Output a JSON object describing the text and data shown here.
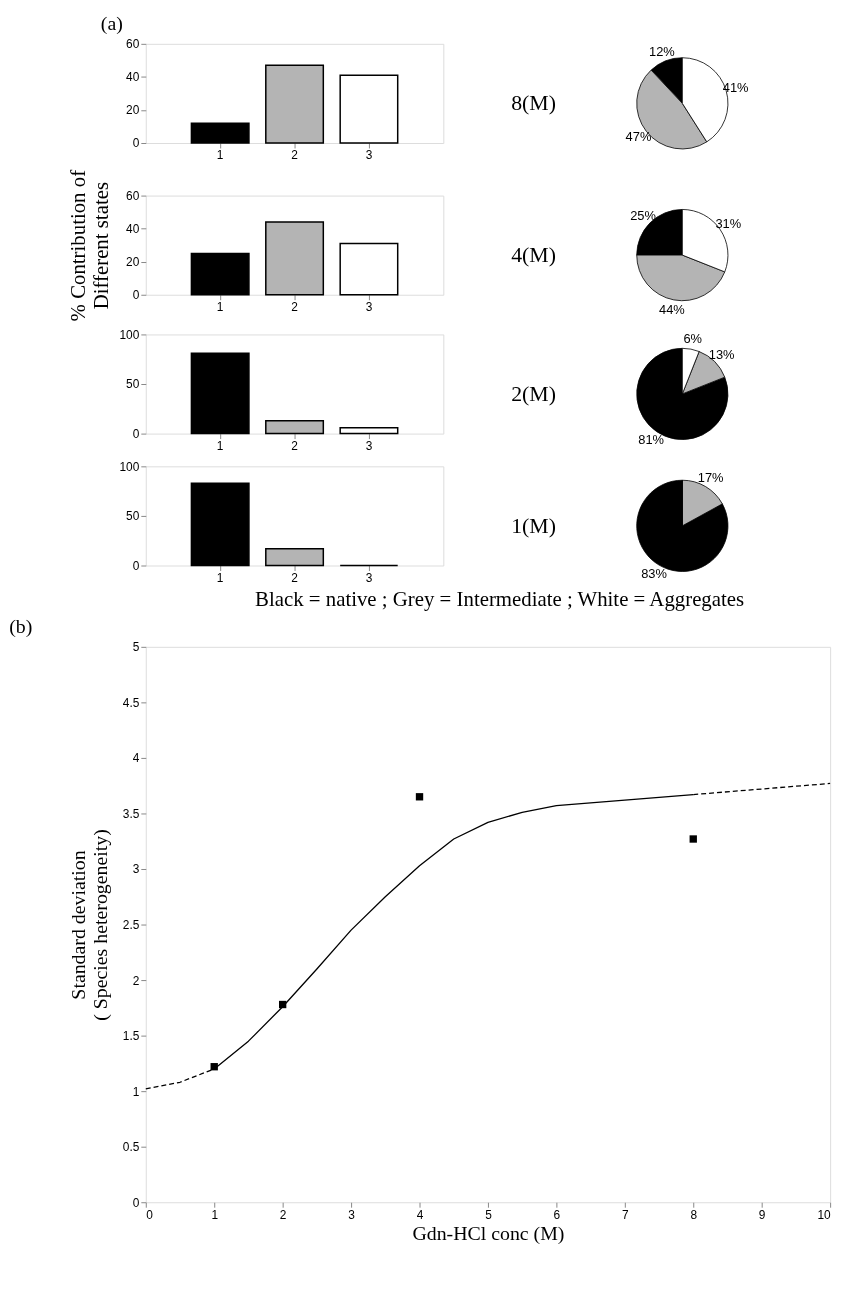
{
  "chart_data": [
    {
      "type": "bar",
      "title": "(a)",
      "categories": [
        "1",
        "2",
        "3"
      ],
      "values": [
        12,
        47,
        41
      ],
      "colors": [
        "#000000",
        "#b4b4b4",
        "#ffffff"
      ],
      "ylim": [
        0,
        60
      ],
      "yticks": [
        0,
        20,
        40,
        60
      ]
    },
    {
      "type": "pie",
      "title": "8(M)",
      "categories": [
        null,
        null,
        null
      ],
      "values": [
        12,
        47,
        41
      ],
      "colors": [
        "#000000",
        "#b4b4b4",
        "#ffffff"
      ],
      "value_labels": [
        "12%",
        "47%",
        "41%"
      ]
    },
    {
      "type": "bar",
      "ylabel": "% Contribution of\nDifferent states",
      "categories": [
        "1",
        "2",
        "3"
      ],
      "values": [
        25,
        44,
        31
      ],
      "colors": [
        "#000000",
        "#b4b4b4",
        "#ffffff"
      ],
      "ylim": [
        0,
        60
      ],
      "yticks": [
        0,
        20,
        40,
        60
      ]
    },
    {
      "type": "pie",
      "title": "4(M)",
      "categories": [
        null,
        null,
        null
      ],
      "values": [
        25,
        44,
        31
      ],
      "colors": [
        "#000000",
        "#b4b4b4",
        "#ffffff"
      ],
      "value_labels": [
        "25%",
        "44%",
        "31%"
      ]
    },
    {
      "type": "bar",
      "categories": [
        "1",
        "2",
        "3"
      ],
      "values": [
        81,
        13,
        6
      ],
      "colors": [
        "#000000",
        "#b4b4b4",
        "#ffffff"
      ],
      "ylim": [
        0,
        100
      ],
      "yticks": [
        0,
        50,
        100
      ]
    },
    {
      "type": "pie",
      "title": "2(M)",
      "categories": [
        null,
        null,
        null
      ],
      "values": [
        81,
        13,
        6
      ],
      "colors": [
        "#000000",
        "#b4b4b4",
        "#ffffff"
      ],
      "value_labels": [
        "81%",
        "13%",
        "6%"
      ]
    },
    {
      "type": "bar",
      "categories": [
        "1",
        "2",
        "3"
      ],
      "values": [
        83,
        17,
        0
      ],
      "colors": [
        "#000000",
        "#b4b4b4",
        "#ffffff"
      ],
      "ylim": [
        0,
        100
      ],
      "yticks": [
        0,
        50,
        100
      ],
      "annotations": [
        "Black = native ;  Grey = Intermediate ; White = Aggregates"
      ]
    },
    {
      "type": "pie",
      "title": "1(M)",
      "categories": [
        null,
        null,
        null
      ],
      "values": [
        83,
        17,
        0
      ],
      "colors": [
        "#000000",
        "#b4b4b4",
        "#ffffff"
      ],
      "value_labels": [
        "83%",
        "17%",
        null
      ]
    },
    {
      "type": "line",
      "title": "(b)",
      "xlabel": "Gdn-HCl conc (M)",
      "ylabel": "Standard  deviation\n( Species heterogeneity)",
      "xlim": [
        0,
        10
      ],
      "xticks": [
        0,
        1,
        2,
        3,
        4,
        5,
        6,
        7,
        8,
        9,
        10
      ],
      "ylim": [
        0,
        5
      ],
      "yticks": [
        0,
        0.5,
        1,
        1.5,
        2,
        2.5,
        3,
        3.5,
        4,
        4.5,
        5
      ],
      "series": [
        {
          "type": "line",
          "line_style": "dashed",
          "color": "#000000",
          "x": [
            0,
            0.5,
            1
          ],
          "values": [
            1.02,
            1.08,
            1.2
          ]
        },
        {
          "type": "line",
          "line_style": "solid",
          "color": "#000000",
          "x": [
            1,
            1.5,
            2,
            2.5,
            3,
            3.5,
            4,
            4.5,
            5,
            5.5,
            6,
            7,
            8
          ],
          "values": [
            1.2,
            1.45,
            1.76,
            2.1,
            2.45,
            2.75,
            3.03,
            3.27,
            3.42,
            3.51,
            3.57,
            3.62,
            3.67
          ]
        },
        {
          "type": "line",
          "line_style": "dashed",
          "color": "#000000",
          "x": [
            8,
            9,
            10
          ],
          "values": [
            3.67,
            3.72,
            3.77
          ]
        },
        {
          "type": "scatter",
          "marker": "square",
          "color": "#000000",
          "x": [
            1,
            2,
            4,
            8
          ],
          "values": [
            1.22,
            1.78,
            3.65,
            3.27
          ]
        }
      ]
    }
  ]
}
